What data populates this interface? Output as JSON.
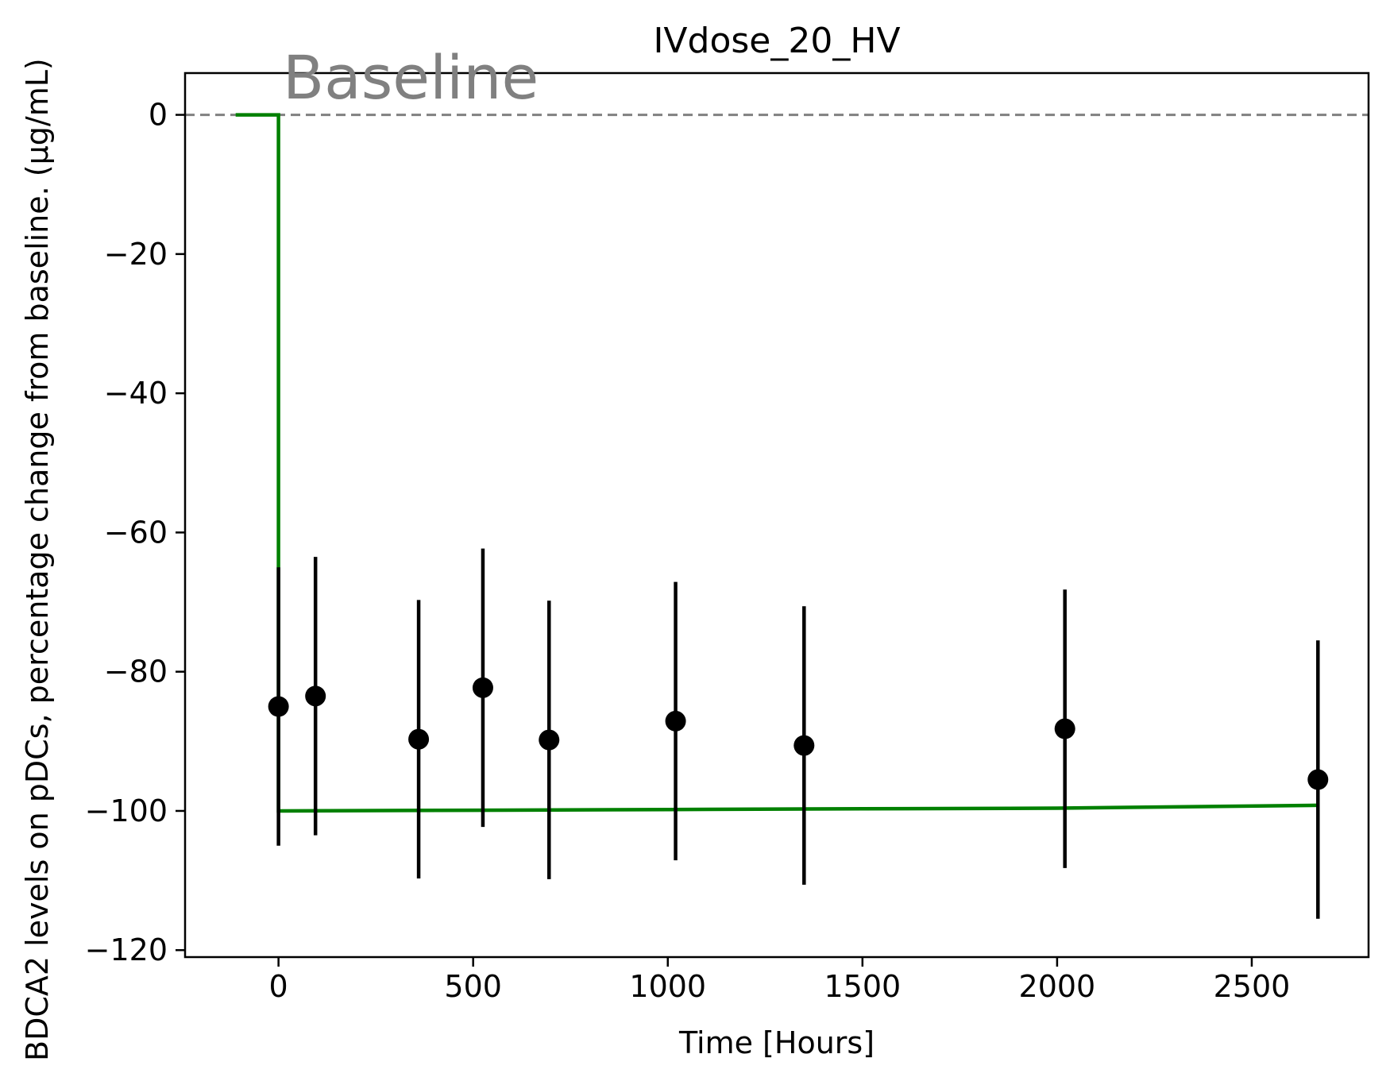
{
  "chart_data": {
    "type": "line",
    "title": "IVdose_20_HV",
    "xlabel": "Time [Hours]",
    "ylabel": "BDCA2 levels on pDCs, percentage change from baseline. (µg/mL)",
    "xlim": [
      -240,
      2800
    ],
    "ylim": [
      -121,
      6
    ],
    "xticks": [
      0,
      500,
      1000,
      1500,
      2000,
      2500
    ],
    "yticks": [
      0,
      -20,
      -40,
      -60,
      -80,
      -100,
      -120
    ],
    "grid": false,
    "legend": "none",
    "colors": {
      "model": "#008000",
      "observed": "#000000",
      "baseline": "#808080"
    },
    "baseline": {
      "y": 0,
      "label": "Baseline"
    },
    "model_line": {
      "x": [
        -110,
        0,
        0,
        500,
        1000,
        1500,
        2000,
        2670
      ],
      "y": [
        0,
        0,
        -100,
        -99.9,
        -99.8,
        -99.7,
        -99.6,
        -99.2
      ]
    },
    "observed": {
      "x": [
        0,
        95,
        360,
        525,
        695,
        1020,
        1350,
        2020,
        2670
      ],
      "y": [
        -85,
        -83.5,
        -89.7,
        -82.3,
        -89.8,
        -87.1,
        -90.6,
        -88.2,
        -95.5
      ],
      "err": [
        20,
        20,
        20,
        20,
        20,
        20,
        20,
        20,
        20
      ]
    }
  }
}
